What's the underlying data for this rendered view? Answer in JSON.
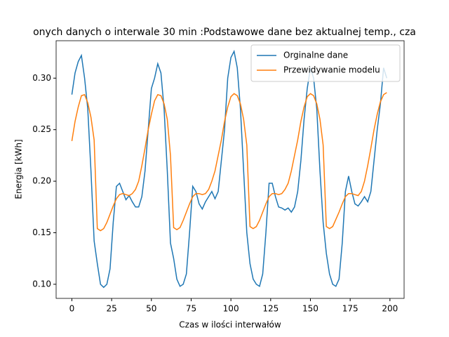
{
  "chart_data": {
    "type": "line",
    "title": "onych danych o interwale 30 min :Podstawowe dane bez aktualnej temp., cza",
    "xlabel": "Czas w ilości interwałów",
    "ylabel": "Energia [kWh]",
    "x": [
      0,
      2,
      4,
      6,
      8,
      10,
      12,
      14,
      16,
      18,
      20,
      22,
      24,
      26,
      28,
      30,
      32,
      34,
      36,
      38,
      40,
      42,
      44,
      46,
      48,
      50,
      52,
      54,
      56,
      58,
      60,
      62,
      64,
      66,
      68,
      70,
      72,
      74,
      76,
      78,
      80,
      82,
      84,
      86,
      88,
      90,
      92,
      94,
      96,
      98,
      100,
      102,
      104,
      106,
      108,
      110,
      112,
      114,
      116,
      118,
      120,
      122,
      124,
      126,
      128,
      130,
      132,
      134,
      136,
      138,
      140,
      142,
      144,
      146,
      148,
      150,
      152,
      154,
      156,
      158,
      160,
      162,
      164,
      166,
      168,
      170,
      172,
      174,
      176,
      178,
      180,
      182,
      184,
      186,
      188,
      190,
      192,
      194,
      196,
      198
    ],
    "series": [
      {
        "name": "Orginalne dane",
        "color": "#1f77b4",
        "values": [
          0.284,
          0.305,
          0.316,
          0.322,
          0.3,
          0.27,
          0.21,
          0.142,
          0.12,
          0.1,
          0.097,
          0.1,
          0.115,
          0.16,
          0.195,
          0.198,
          0.19,
          0.182,
          0.186,
          0.18,
          0.175,
          0.175,
          0.185,
          0.21,
          0.25,
          0.29,
          0.3,
          0.314,
          0.305,
          0.27,
          0.21,
          0.14,
          0.125,
          0.105,
          0.098,
          0.1,
          0.11,
          0.15,
          0.195,
          0.19,
          0.178,
          0.173,
          0.18,
          0.185,
          0.19,
          0.183,
          0.19,
          0.22,
          0.25,
          0.3,
          0.32,
          0.326,
          0.31,
          0.27,
          0.21,
          0.15,
          0.12,
          0.105,
          0.1,
          0.098,
          0.11,
          0.15,
          0.198,
          0.198,
          0.185,
          0.175,
          0.174,
          0.172,
          0.174,
          0.17,
          0.175,
          0.19,
          0.22,
          0.26,
          0.29,
          0.31,
          0.3,
          0.27,
          0.21,
          0.16,
          0.13,
          0.11,
          0.1,
          0.098,
          0.105,
          0.14,
          0.19,
          0.205,
          0.19,
          0.178,
          0.176,
          0.18,
          0.185,
          0.18,
          0.19,
          0.22,
          0.25,
          0.275,
          0.31,
          0.3
        ]
      },
      {
        "name": "Przewidywanie modelu",
        "color": "#ff7f0e",
        "values": [
          0.239,
          0.258,
          0.272,
          0.283,
          0.284,
          0.276,
          0.262,
          0.24,
          0.154,
          0.152,
          0.154,
          0.16,
          0.168,
          0.176,
          0.183,
          0.187,
          0.188,
          0.187,
          0.186,
          0.188,
          0.192,
          0.2,
          0.215,
          0.232,
          0.25,
          0.265,
          0.278,
          0.284,
          0.283,
          0.275,
          0.26,
          0.225,
          0.155,
          0.153,
          0.155,
          0.162,
          0.17,
          0.178,
          0.185,
          0.188,
          0.188,
          0.187,
          0.188,
          0.192,
          0.2,
          0.21,
          0.225,
          0.24,
          0.258,
          0.272,
          0.282,
          0.285,
          0.283,
          0.275,
          0.26,
          0.235,
          0.156,
          0.154,
          0.156,
          0.162,
          0.17,
          0.178,
          0.185,
          0.188,
          0.188,
          0.187,
          0.188,
          0.192,
          0.198,
          0.21,
          0.225,
          0.24,
          0.258,
          0.272,
          0.282,
          0.285,
          0.283,
          0.275,
          0.26,
          0.235,
          0.156,
          0.154,
          0.156,
          0.163,
          0.17,
          0.178,
          0.185,
          0.188,
          0.188,
          0.187,
          0.186,
          0.19,
          0.2,
          0.215,
          0.232,
          0.25,
          0.265,
          0.277,
          0.284,
          0.286
        ]
      }
    ],
    "xlim": [
      -9.9,
      208.9
    ],
    "xticks": [
      0,
      25,
      50,
      75,
      100,
      125,
      150,
      175,
      200
    ],
    "ylim": [
      0.0863,
      0.3363
    ],
    "yticks": [
      {
        "value": 0.1,
        "label": "0.10"
      },
      {
        "value": 0.15,
        "label": "0.15"
      },
      {
        "value": 0.2,
        "label": "0.20"
      },
      {
        "value": 0.25,
        "label": "0.25"
      },
      {
        "value": 0.3,
        "label": "0.30"
      }
    ],
    "legend": "upper right"
  }
}
